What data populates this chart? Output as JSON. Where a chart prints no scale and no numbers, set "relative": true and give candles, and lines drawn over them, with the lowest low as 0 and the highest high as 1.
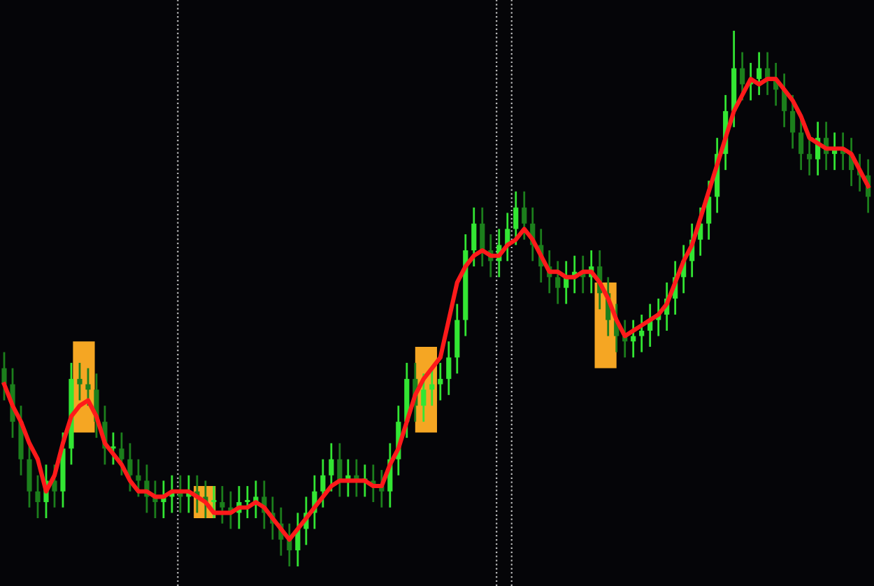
{
  "chart_data": {
    "type": "candlestick",
    "relative": true,
    "categories": [
      null,
      null,
      null,
      null,
      null,
      null,
      null,
      null,
      null,
      null,
      null,
      null,
      null,
      null,
      null,
      null,
      null,
      null,
      null,
      null,
      null,
      null,
      null,
      null,
      null,
      null,
      null,
      null,
      null,
      null,
      null,
      null,
      null,
      null,
      null,
      null,
      null,
      null,
      null,
      null,
      null,
      null,
      null,
      null,
      null,
      null,
      null,
      null,
      null,
      null,
      null,
      null,
      null,
      null,
      null,
      null,
      null,
      null,
      null,
      null,
      null,
      null,
      null,
      null,
      null,
      null,
      null,
      null,
      null,
      null,
      null,
      null,
      null,
      null,
      null,
      null,
      null,
      null,
      null,
      null,
      null,
      null,
      null,
      null,
      null,
      null,
      null,
      null,
      null,
      null,
      null,
      null,
      null,
      null,
      null,
      null,
      null,
      null,
      null,
      null,
      null,
      null,
      null,
      null
    ],
    "colors": [
      "#1c7f1c",
      "#1c7f1c",
      "#1c7f1c",
      "#1c7f1c",
      "#1c7f1c",
      "#33e633",
      "#1c7f1c",
      "#33e633",
      "#33e633",
      "#1c7f1c",
      "#1c7f1c",
      "#1c7f1c",
      "#1c7f1c",
      "#33e633",
      "#1c7f1c",
      "#1c7f1c",
      "#1c7f1c",
      "#1c7f1c",
      "#1c7f1c",
      "#33e633",
      "#33e633",
      "#1c7f1c",
      "#33e633",
      "#1c7f1c",
      "#1c7f1c",
      "#33e633",
      "#1c7f1c",
      "#1c7f1c",
      "#33e633",
      "#33e633",
      "#33e633",
      "#1c7f1c",
      "#1c7f1c",
      "#1c7f1c",
      "#1c7f1c",
      "#33e633",
      "#33e633",
      "#33e633",
      "#33e633",
      "#33e633",
      "#1c7f1c",
      "#33e633",
      "#1c7f1c",
      "#33e633",
      "#1c7f1c",
      "#1c7f1c",
      "#33e633",
      "#33e633",
      "#33e633",
      "#1c7f1c",
      "#33e633",
      "#33e633",
      "#33e633",
      "#33e633",
      "#33e633",
      "#33e633",
      "#33e633",
      "#1c7f1c",
      "#1c7f1c",
      "#33e633",
      "#33e633",
      "#33e633",
      "#1c7f1c",
      "#1c7f1c",
      "#1c7f1c",
      "#1c7f1c",
      "#1c7f1c",
      "#33e633",
      "#33e633",
      "#1c7f1c",
      "#33e633",
      "#1c7f1c",
      "#1c7f1c",
      "#1c7f1c",
      "#1c7f1c",
      "#33e633",
      "#33e633",
      "#33e633",
      "#33e633",
      "#33e633",
      "#33e633",
      "#33e633",
      "#33e633",
      "#33e633",
      "#33e633",
      "#33e633",
      "#33e633",
      "#33e633",
      "#1c7f1c",
      "#33e633",
      "#33e633",
      "#1c7f1c",
      "#1c7f1c",
      "#1c7f1c",
      "#1c7f1c",
      "#1c7f1c",
      "#1c7f1c",
      "#33e633",
      "#1c7f1c",
      "#33e633",
      "#1c7f1c",
      "#1c7f1c",
      "#1c7f1c",
      "#1c7f1c"
    ],
    "ohlc": [
      [
        0.37,
        0.4,
        0.31,
        0.34
      ],
      [
        0.34,
        0.37,
        0.24,
        0.27
      ],
      [
        0.27,
        0.3,
        0.17,
        0.2
      ],
      [
        0.2,
        0.23,
        0.11,
        0.14
      ],
      [
        0.14,
        0.17,
        0.09,
        0.12
      ],
      [
        0.12,
        0.19,
        0.09,
        0.16
      ],
      [
        0.16,
        0.19,
        0.11,
        0.14
      ],
      [
        0.14,
        0.25,
        0.11,
        0.22
      ],
      [
        0.22,
        0.38,
        0.19,
        0.35
      ],
      [
        0.35,
        0.38,
        0.31,
        0.34
      ],
      [
        0.34,
        0.37,
        0.3,
        0.33
      ],
      [
        0.33,
        0.36,
        0.24,
        0.27
      ],
      [
        0.27,
        0.3,
        0.19,
        0.22
      ],
      [
        0.22,
        0.25,
        0.19,
        0.22
      ],
      [
        0.22,
        0.25,
        0.17,
        0.2
      ],
      [
        0.2,
        0.23,
        0.14,
        0.17
      ],
      [
        0.17,
        0.2,
        0.13,
        0.16
      ],
      [
        0.16,
        0.19,
        0.1,
        0.13
      ],
      [
        0.13,
        0.16,
        0.09,
        0.12
      ],
      [
        0.12,
        0.16,
        0.09,
        0.13
      ],
      [
        0.13,
        0.17,
        0.1,
        0.14
      ],
      [
        0.14,
        0.17,
        0.1,
        0.13
      ],
      [
        0.13,
        0.17,
        0.1,
        0.14
      ],
      [
        0.14,
        0.17,
        0.1,
        0.13
      ],
      [
        0.13,
        0.16,
        0.09,
        0.12
      ],
      [
        0.12,
        0.15,
        0.09,
        0.12
      ],
      [
        0.12,
        0.15,
        0.08,
        0.11
      ],
      [
        0.11,
        0.14,
        0.07,
        0.1
      ],
      [
        0.1,
        0.15,
        0.07,
        0.12
      ],
      [
        0.12,
        0.15,
        0.09,
        0.12
      ],
      [
        0.12,
        0.16,
        0.09,
        0.13
      ],
      [
        0.13,
        0.16,
        0.07,
        0.1
      ],
      [
        0.1,
        0.13,
        0.05,
        0.08
      ],
      [
        0.08,
        0.11,
        0.02,
        0.05
      ],
      [
        0.05,
        0.08,
        0,
        0.03
      ],
      [
        0.03,
        0.1,
        0,
        0.07
      ],
      [
        0.07,
        0.13,
        0.04,
        0.1
      ],
      [
        0.1,
        0.17,
        0.07,
        0.14
      ],
      [
        0.14,
        0.2,
        0.11,
        0.17
      ],
      [
        0.17,
        0.23,
        0.14,
        0.2
      ],
      [
        0.2,
        0.23,
        0.13,
        0.16
      ],
      [
        0.16,
        0.2,
        0.13,
        0.17
      ],
      [
        0.17,
        0.2,
        0.13,
        0.16
      ],
      [
        0.16,
        0.19,
        0.13,
        0.16
      ],
      [
        0.16,
        0.19,
        0.12,
        0.15
      ],
      [
        0.15,
        0.18,
        0.11,
        0.14
      ],
      [
        0.14,
        0.23,
        0.11,
        0.2
      ],
      [
        0.2,
        0.3,
        0.17,
        0.27
      ],
      [
        0.27,
        0.38,
        0.24,
        0.35
      ],
      [
        0.35,
        0.38,
        0.27,
        0.3
      ],
      [
        0.3,
        0.36,
        0.27,
        0.33
      ],
      [
        0.33,
        0.37,
        0.3,
        0.34
      ],
      [
        0.34,
        0.38,
        0.31,
        0.35
      ],
      [
        0.35,
        0.42,
        0.32,
        0.39
      ],
      [
        0.39,
        0.49,
        0.36,
        0.46
      ],
      [
        0.46,
        0.62,
        0.43,
        0.59
      ],
      [
        0.59,
        0.67,
        0.56,
        0.64
      ],
      [
        0.64,
        0.67,
        0.56,
        0.59
      ],
      [
        0.59,
        0.62,
        0.54,
        0.57
      ],
      [
        0.57,
        0.63,
        0.54,
        0.6
      ],
      [
        0.6,
        0.66,
        0.57,
        0.63
      ],
      [
        0.63,
        0.7,
        0.6,
        0.67
      ],
      [
        0.67,
        0.7,
        0.61,
        0.64
      ],
      [
        0.64,
        0.67,
        0.57,
        0.6
      ],
      [
        0.6,
        0.63,
        0.53,
        0.56
      ],
      [
        0.56,
        0.59,
        0.51,
        0.54
      ],
      [
        0.54,
        0.57,
        0.49,
        0.52
      ],
      [
        0.52,
        0.57,
        0.49,
        0.54
      ],
      [
        0.54,
        0.58,
        0.51,
        0.55
      ],
      [
        0.55,
        0.58,
        0.51,
        0.54
      ],
      [
        0.54,
        0.59,
        0.51,
        0.56
      ],
      [
        0.56,
        0.59,
        0.48,
        0.51
      ],
      [
        0.51,
        0.54,
        0.43,
        0.46
      ],
      [
        0.46,
        0.49,
        0.4,
        0.43
      ],
      [
        0.43,
        0.46,
        0.39,
        0.42
      ],
      [
        0.42,
        0.46,
        0.39,
        0.43
      ],
      [
        0.43,
        0.47,
        0.4,
        0.44
      ],
      [
        0.44,
        0.49,
        0.41,
        0.46
      ],
      [
        0.46,
        0.5,
        0.43,
        0.47
      ],
      [
        0.47,
        0.53,
        0.44,
        0.5
      ],
      [
        0.5,
        0.57,
        0.47,
        0.54
      ],
      [
        0.54,
        0.6,
        0.51,
        0.57
      ],
      [
        0.57,
        0.64,
        0.54,
        0.61
      ],
      [
        0.61,
        0.67,
        0.58,
        0.64
      ],
      [
        0.64,
        0.72,
        0.61,
        0.69
      ],
      [
        0.69,
        0.8,
        0.66,
        0.77
      ],
      [
        0.77,
        0.88,
        0.74,
        0.85
      ],
      [
        0.85,
        1,
        0.82,
        0.93
      ],
      [
        0.93,
        0.96,
        0.87,
        0.9
      ],
      [
        0.9,
        0.94,
        0.87,
        0.91
      ],
      [
        0.91,
        0.96,
        0.88,
        0.93
      ],
      [
        0.93,
        0.96,
        0.88,
        0.91
      ],
      [
        0.91,
        0.94,
        0.86,
        0.89
      ],
      [
        0.89,
        0.92,
        0.82,
        0.85
      ],
      [
        0.85,
        0.88,
        0.78,
        0.81
      ],
      [
        0.81,
        0.84,
        0.74,
        0.77
      ],
      [
        0.77,
        0.8,
        0.73,
        0.76
      ],
      [
        0.76,
        0.83,
        0.73,
        0.8
      ],
      [
        0.8,
        0.83,
        0.74,
        0.77
      ],
      [
        0.77,
        0.81,
        0.74,
        0.78
      ],
      [
        0.78,
        0.81,
        0.74,
        0.77
      ],
      [
        0.77,
        0.8,
        0.71,
        0.74
      ],
      [
        0.74,
        0.77,
        0.7,
        0.73
      ],
      [
        0.73,
        0.76,
        0.66,
        0.69
      ]
    ],
    "series": [
      {
        "type": "line",
        "color": "#ff1a1a",
        "values": [
          0.34,
          0.3,
          0.27,
          0.23,
          0.2,
          0.14,
          0.17,
          0.23,
          0.28,
          0.3,
          0.31,
          0.28,
          0.23,
          0.21,
          0.19,
          0.16,
          0.14,
          0.14,
          0.13,
          0.13,
          0.14,
          0.14,
          0.14,
          0.13,
          0.12,
          0.1,
          0.1,
          0.1,
          0.11,
          0.11,
          0.12,
          0.11,
          0.09,
          0.07,
          0.05,
          0.07,
          0.09,
          0.11,
          0.13,
          0.15,
          0.16,
          0.16,
          0.16,
          0.16,
          0.15,
          0.15,
          0.19,
          0.22,
          0.27,
          0.32,
          0.35,
          0.37,
          0.39,
          0.46,
          0.53,
          0.56,
          0.58,
          0.59,
          0.58,
          0.58,
          0.6,
          0.61,
          0.63,
          0.61,
          0.58,
          0.55,
          0.55,
          0.54,
          0.54,
          0.55,
          0.55,
          0.53,
          0.5,
          0.46,
          0.43,
          0.44,
          0.45,
          0.46,
          0.47,
          0.49,
          0.53,
          0.57,
          0.6,
          0.65,
          0.7,
          0.75,
          0.8,
          0.85,
          0.88,
          0.91,
          0.9,
          0.91,
          0.91,
          0.89,
          0.87,
          0.84,
          0.8,
          0.79,
          0.78,
          0.78,
          0.78,
          0.77,
          0.74,
          0.71
        ]
      }
    ]
  }
}
